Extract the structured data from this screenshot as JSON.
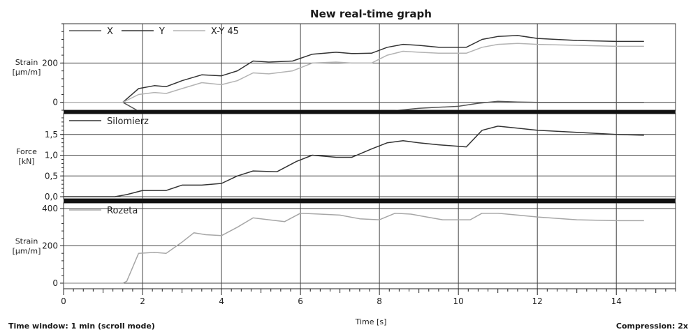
{
  "chart_data": {
    "title": "New real-time graph",
    "type": "line",
    "xlabel": "Time [s]",
    "xlim": [
      0,
      15.5
    ],
    "xticks": [
      0,
      2,
      4,
      6,
      8,
      10,
      12,
      14
    ],
    "xtick_labels": [
      "0",
      "2",
      "4",
      "6",
      "8",
      "10",
      "12",
      "14"
    ],
    "grid": true,
    "footer_left": "Time window: 1 min (scroll mode)",
    "footer_right": "Compression: 2x",
    "panels": [
      {
        "ylabel": [
          "Strain",
          "[µm/m]"
        ],
        "ylim": [
          -40,
          400
        ],
        "yticks": [
          0,
          200
        ],
        "ytick_labels": [
          "0",
          "200"
        ],
        "legend_placement": "top-left",
        "series": [
          {
            "name": "X",
            "color": "#555555",
            "x": [
              0,
              1.5,
              1.9,
              2.6,
              3.0,
              3.5,
              4.0,
              4.5,
              5.0,
              5.5,
              6.0,
              6.5,
              7.0,
              7.5,
              8.0,
              8.5,
              9.0,
              9.5,
              10.0,
              10.5,
              11.0,
              11.5,
              12.0,
              13.0,
              14.0,
              14.7
            ],
            "y": [
              0,
              0,
              -45,
              -55,
              -55,
              -55,
              -60,
              -58,
              -60,
              -60,
              -60,
              -58,
              -55,
              -55,
              -50,
              -40,
              -30,
              -25,
              -20,
              -5,
              5,
              2,
              0,
              0,
              0,
              0
            ]
          },
          {
            "name": "Y",
            "color": "#333333",
            "x": [
              0,
              1.5,
              1.9,
              2.3,
              2.6,
              3.0,
              3.5,
              4.0,
              4.4,
              4.8,
              5.2,
              5.8,
              6.3,
              6.9,
              7.3,
              7.8,
              8.2,
              8.6,
              9.0,
              9.5,
              10.2,
              10.6,
              11.0,
              11.5,
              12.0,
              13.0,
              14.0,
              14.7
            ],
            "y": [
              0,
              0,
              70,
              85,
              80,
              110,
              140,
              135,
              160,
              210,
              205,
              210,
              245,
              255,
              248,
              250,
              280,
              295,
              290,
              280,
              280,
              320,
              335,
              340,
              325,
              315,
              310,
              310
            ]
          },
          {
            "name": "X-Y 45",
            "color": "#b3b3b3",
            "x": [
              0,
              1.5,
              1.9,
              2.3,
              2.6,
              3.0,
              3.5,
              4.0,
              4.4,
              4.8,
              5.2,
              5.8,
              6.3,
              6.9,
              7.3,
              7.8,
              8.2,
              8.6,
              9.0,
              9.5,
              10.2,
              10.6,
              11.0,
              11.5,
              12.0,
              13.0,
              14.0,
              14.7
            ],
            "y": [
              0,
              0,
              40,
              50,
              45,
              70,
              100,
              90,
              110,
              150,
              145,
              160,
              200,
              205,
              200,
              200,
              240,
              260,
              255,
              250,
              250,
              280,
              295,
              300,
              295,
              290,
              285,
              285
            ]
          }
        ]
      },
      {
        "ylabel": [
          "Force",
          "[kN]"
        ],
        "ylim": [
          -0.05,
          2.0
        ],
        "yticks": [
          0.0,
          0.5,
          1.0,
          1.5
        ],
        "ytick_labels": [
          "0,0",
          "0,5",
          "1,0",
          "1,5"
        ],
        "legend_placement": "top-left",
        "series": [
          {
            "name": "Silomierz",
            "color": "#333333",
            "x": [
              0,
              1.3,
              1.6,
              2.0,
              2.6,
              3.0,
              3.5,
              4.0,
              4.4,
              4.8,
              5.4,
              5.9,
              6.3,
              6.9,
              7.3,
              7.8,
              8.2,
              8.6,
              9.0,
              9.5,
              10.2,
              10.6,
              11.0,
              11.5,
              12.0,
              13.0,
              14.0,
              14.7
            ],
            "y": [
              0,
              0,
              0.05,
              0.15,
              0.15,
              0.28,
              0.28,
              0.32,
              0.5,
              0.62,
              0.6,
              0.85,
              1.0,
              0.95,
              0.95,
              1.15,
              1.3,
              1.35,
              1.3,
              1.25,
              1.2,
              1.6,
              1.7,
              1.65,
              1.6,
              1.55,
              1.5,
              1.48
            ]
          }
        ]
      },
      {
        "ylabel": [
          "Strain",
          "[µm/m]"
        ],
        "ylim": [
          -30,
          430
        ],
        "yticks": [
          0,
          200,
          400
        ],
        "ytick_labels": [
          "0",
          "200",
          "400"
        ],
        "legend_placement": "top-left",
        "series": [
          {
            "name": "Rozeta",
            "color": "#a6a6a6",
            "x": [
              0,
              1.5,
              1.6,
              1.9,
              2.3,
              2.6,
              3.0,
              3.3,
              3.6,
              4.0,
              4.4,
              4.8,
              5.2,
              5.6,
              6.0,
              6.5,
              7.0,
              7.5,
              8.0,
              8.4,
              8.8,
              9.2,
              9.6,
              10.0,
              10.3,
              10.6,
              11.0,
              11.5,
              12.0,
              13.0,
              14.0,
              14.7
            ],
            "y": [
              0,
              0,
              10,
              160,
              165,
              160,
              220,
              270,
              260,
              255,
              300,
              350,
              340,
              330,
              375,
              370,
              365,
              345,
              340,
              375,
              370,
              355,
              340,
              340,
              340,
              375,
              375,
              365,
              355,
              340,
              335,
              335
            ]
          }
        ]
      }
    ]
  }
}
